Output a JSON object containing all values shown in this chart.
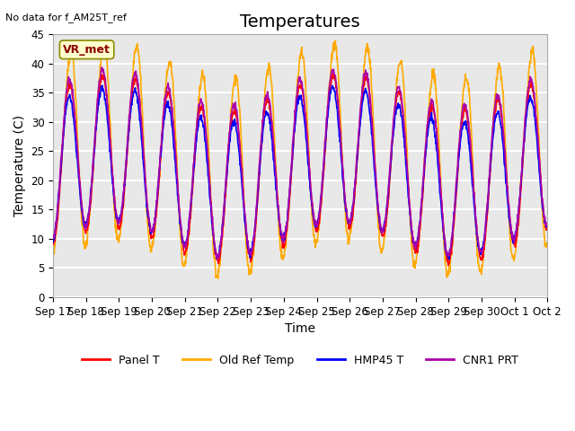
{
  "title": "Temperatures",
  "xlabel": "Time",
  "ylabel": "Temperature (C)",
  "top_left_text": "No data for f_AM25T_ref",
  "annotation_box": "VR_met",
  "ylim": [
    0,
    45
  ],
  "background_color": "#ffffff",
  "plot_bg_color": "#e8e8e8",
  "grid_color": "#ffffff",
  "series": [
    {
      "label": "Panel T",
      "color": "#ff0000",
      "lw": 1.2
    },
    {
      "label": "Old Ref Temp",
      "color": "#ffaa00",
      "lw": 1.2
    },
    {
      "label": "HMP45 T",
      "color": "#0000ff",
      "lw": 1.2
    },
    {
      "label": "CNR1 PRT",
      "color": "#aa00aa",
      "lw": 1.2
    }
  ],
  "xtick_labels": [
    "Sep 17",
    "Sep 18",
    "Sep 19",
    "Sep 20",
    "Sep 21",
    "Sep 22",
    "Sep 23",
    "Sep 24",
    "Sep 25",
    "Sep 26",
    "Sep 27",
    "Sep 28",
    "Sep 29",
    "Sep 30",
    "Oct 1",
    "Oct 2"
  ],
  "num_days": 15,
  "title_fontsize": 14,
  "label_fontsize": 10,
  "tick_fontsize": 8.5
}
